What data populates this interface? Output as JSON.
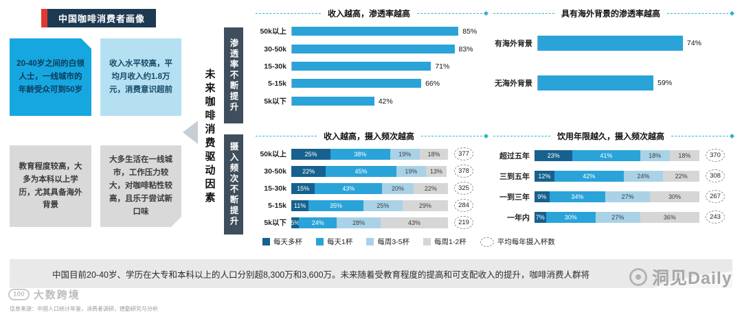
{
  "colors": {
    "accent_red": "#e0392f",
    "badge_navy": "#1e3a52",
    "bright_blue": "#16a7e0",
    "light_blue": "#b5e0f2",
    "gray_box": "#d9d9d9",
    "dark_panel": "#3f4e5c",
    "teal_dash": "#2fb3c4",
    "bar_blue": "#2aa3d8"
  },
  "header": {
    "title": "中国咖啡消费者画像"
  },
  "profile_boxes": [
    {
      "text": "20-40岁之间的白领人士，一线城市的年龄受众可到50岁"
    },
    {
      "text": "收入水平较高，平均月收入约1.8万元，消费意识超前"
    },
    {
      "text": "教育程度较高，大多为本科以上学历，尤其具备海外背景"
    },
    {
      "text": "大多生活在一线城市，工作压力较大，对咖啡粘性较高，且乐于尝试新口味"
    }
  ],
  "driver_label": "未来咖啡消费驱动因素",
  "section_labels": [
    "渗透率不断提升",
    "摄入频次不断提升"
  ],
  "chart_data": [
    {
      "type": "bar",
      "title": "收入越高，渗透率越高",
      "categories": [
        "50k以上",
        "30-50k",
        "15-30k",
        "5-15k",
        "5k以下"
      ],
      "values": [
        85,
        83,
        71,
        66,
        42
      ],
      "unit": "%",
      "bar_color": "#2aa3d8",
      "xlim": [
        0,
        100
      ],
      "grid": false
    },
    {
      "type": "bar",
      "title": "具有海外背景的渗透率越高",
      "categories": [
        "有海外背景",
        "无海外背景"
      ],
      "values": [
        74,
        59
      ],
      "unit": "%",
      "bar_color": "#2aa3d8",
      "xlim": [
        0,
        100
      ],
      "grid": false
    },
    {
      "type": "stacked_bar",
      "title": "收入越高，摄入频次越高",
      "categories": [
        "50k以上",
        "30-50k",
        "15-30k",
        "5-15k",
        "5k以下"
      ],
      "series_labels": [
        "每天多杯",
        "每天1杯",
        "每周3-5杯",
        "每周1-2杯"
      ],
      "colors": [
        "#16618e",
        "#2aa3d8",
        "#a9d2e6",
        "#d6d6d6"
      ],
      "rows": [
        [
          25,
          38,
          19,
          18
        ],
        [
          22,
          45,
          19,
          13
        ],
        [
          15,
          43,
          20,
          22
        ],
        [
          11,
          35,
          25,
          29
        ],
        [
          5,
          24,
          28,
          43
        ]
      ],
      "totals": [
        377,
        378,
        325,
        284,
        219
      ],
      "totals_label": "平均每年摄入杯数",
      "unit": "%"
    },
    {
      "type": "stacked_bar",
      "title": "饮用年限越久，摄入频次越高",
      "categories": [
        "超过五年",
        "三到五年",
        "一到三年",
        "一年内"
      ],
      "series_labels": [
        "每天多杯",
        "每天1杯",
        "每周3-5杯",
        "每周1-2杯"
      ],
      "colors": [
        "#16618e",
        "#2aa3d8",
        "#a9d2e6",
        "#d6d6d6"
      ],
      "rows": [
        [
          23,
          41,
          18,
          18
        ],
        [
          12,
          42,
          24,
          22
        ],
        [
          9,
          34,
          27,
          30
        ],
        [
          7,
          30,
          27,
          36
        ]
      ],
      "totals": [
        370,
        308,
        267,
        243
      ],
      "totals_label": "平均每年摄入杯数",
      "unit": "%"
    }
  ],
  "legend": {
    "items": [
      {
        "label": "每天多杯",
        "color": "#16618e"
      },
      {
        "label": "每天1杯",
        "color": "#2aa3d8"
      },
      {
        "label": "每周3-5杯",
        "color": "#a9d2e6"
      },
      {
        "label": "每周1-2杯",
        "color": "#d6d6d6"
      }
    ],
    "avg_item": {
      "label": "平均每年摄入杯数"
    }
  },
  "summary": "中国目前20-40岁、学历在大专和本科以上的人口分别超8,300万和3,600万。未来随着受教育程度的提高和可支配收入的提升，咖啡消费人群将",
  "watermark": {
    "text": "洞见Daily"
  },
  "footer": {
    "logo_mark": "100",
    "logo_text": "大数跨境",
    "source": "信息来源：中国人口统计年鉴，消费者调研，德勤研究与分析"
  }
}
